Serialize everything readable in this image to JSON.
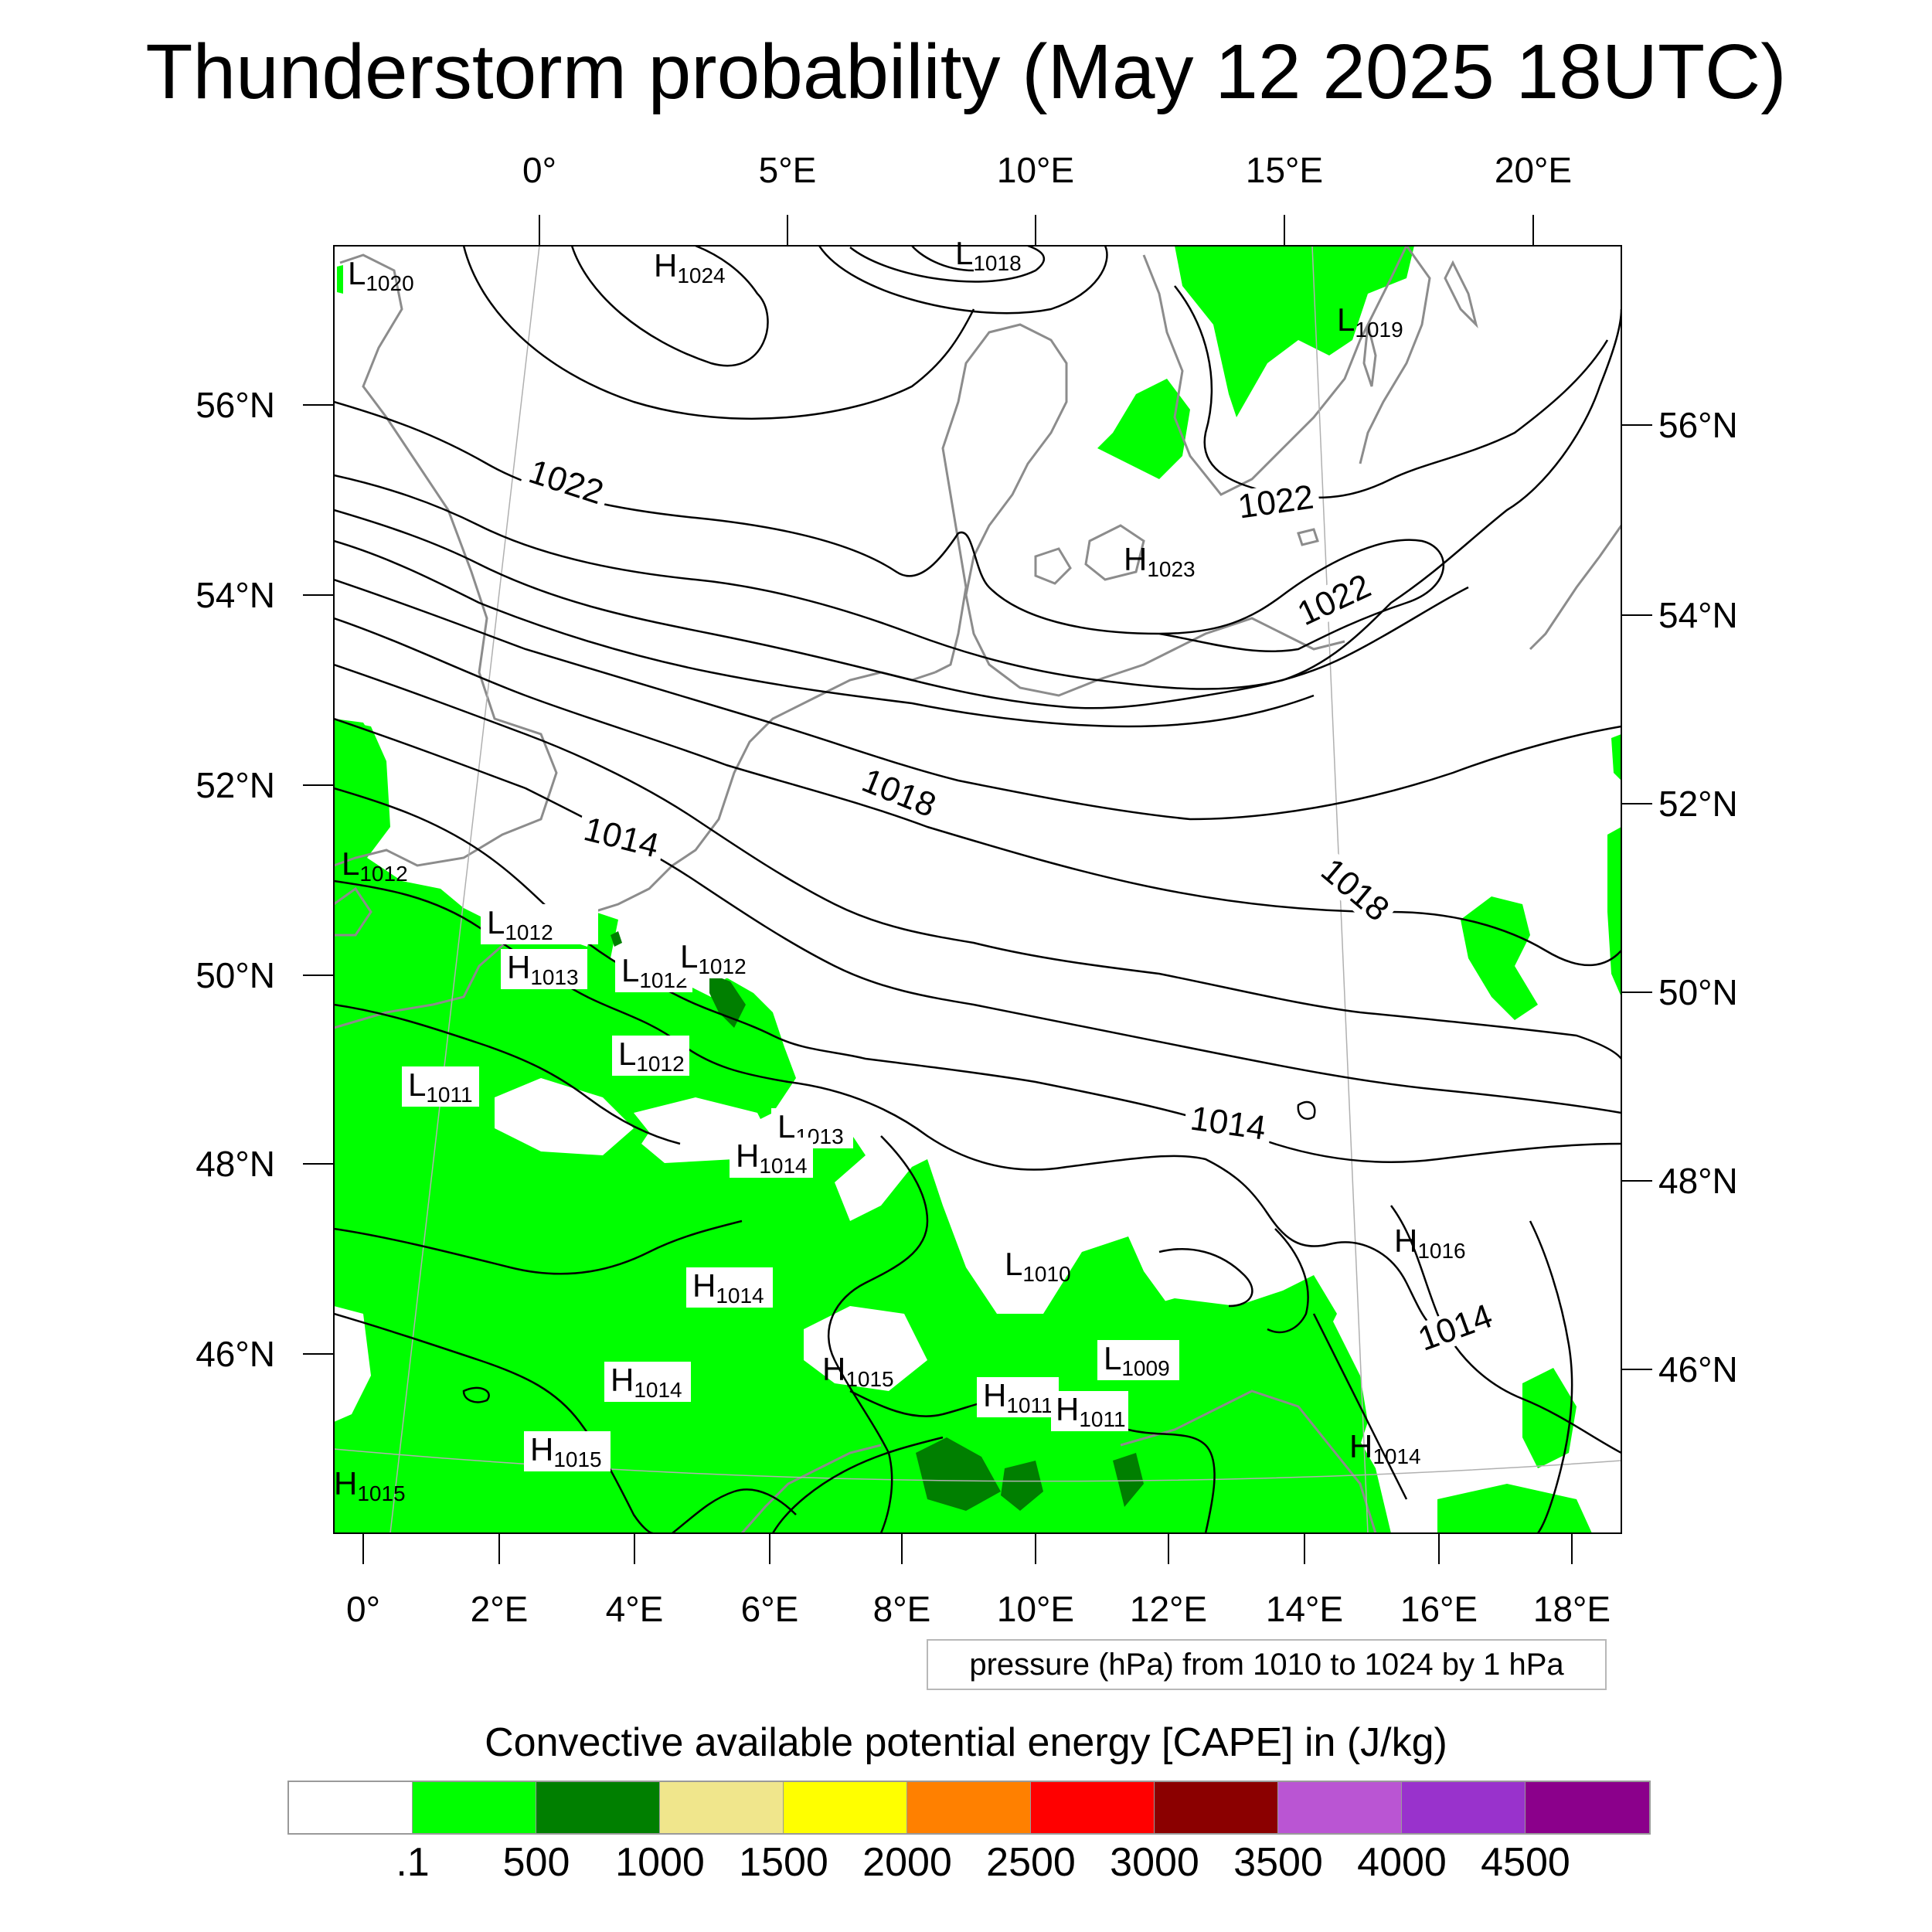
{
  "title": "Thunderstorm probability (May 12 2025 18UTC)",
  "map": {
    "top_lon_labels": [
      "0°",
      "5°E",
      "10°E",
      "15°E",
      "20°E"
    ],
    "bottom_lon_labels": [
      "0°",
      "2°E",
      "4°E",
      "6°E",
      "8°E",
      "10°E",
      "12°E",
      "14°E",
      "16°E",
      "18°E"
    ],
    "left_lat_labels": [
      "56°N",
      "54°N",
      "52°N",
      "50°N",
      "48°N",
      "46°N"
    ],
    "right_lat_labels": [
      "56°N",
      "54°N",
      "52°N",
      "50°N",
      "48°N",
      "46°N"
    ],
    "isobar_labels": [
      "1022",
      "1022",
      "1022",
      "1018",
      "1018",
      "1014",
      "1014",
      "1014"
    ],
    "pressure_centers": [
      {
        "type": "L",
        "value": "1020"
      },
      {
        "type": "H",
        "value": "1024"
      },
      {
        "type": "L",
        "value": "1018"
      },
      {
        "type": "L",
        "value": "1019"
      },
      {
        "type": "H",
        "value": "1023"
      },
      {
        "type": "L",
        "value": "1012"
      },
      {
        "type": "L",
        "value": "1012"
      },
      {
        "type": "H",
        "value": "1013"
      },
      {
        "type": "L",
        "value": "1012"
      },
      {
        "type": "L",
        "value": "1012"
      },
      {
        "type": "L",
        "value": "1012"
      },
      {
        "type": "L",
        "value": "1011"
      },
      {
        "type": "L",
        "value": "1013"
      },
      {
        "type": "H",
        "value": "1014"
      },
      {
        "type": "H",
        "value": "1016"
      },
      {
        "type": "L",
        "value": "1010"
      },
      {
        "type": "H",
        "value": "1014"
      },
      {
        "type": "H",
        "value": "1015"
      },
      {
        "type": "L",
        "value": "1009"
      },
      {
        "type": "H",
        "value": "1011"
      },
      {
        "type": "H",
        "value": "1011"
      },
      {
        "type": "H",
        "value": "1014"
      },
      {
        "type": "H",
        "value": "1014"
      },
      {
        "type": "H",
        "value": "1015"
      },
      {
        "type": "H",
        "value": "1015"
      }
    ],
    "colors": {
      "cape_low": "#00ff00",
      "cape_mid": "#007f00",
      "coast": "#8c8c8c",
      "isobar": "#000000"
    }
  },
  "contour_note": "pressure (hPa) from 1010 to 1024 by 1 hPa",
  "colorbar": {
    "title": "Convective available potential energy [CAPE] in (J/kg)",
    "colors": [
      "#ffffff",
      "#00ff00",
      "#007f00",
      "#f0e68c",
      "#ffff00",
      "#ff8000",
      "#ff0000",
      "#8b0000",
      "#ba55d3",
      "#9932cc",
      "#8b008b"
    ],
    "labels": [
      ".1",
      "500",
      "1000",
      "1500",
      "2000",
      "2500",
      "3000",
      "3500",
      "4000",
      "4500"
    ]
  }
}
